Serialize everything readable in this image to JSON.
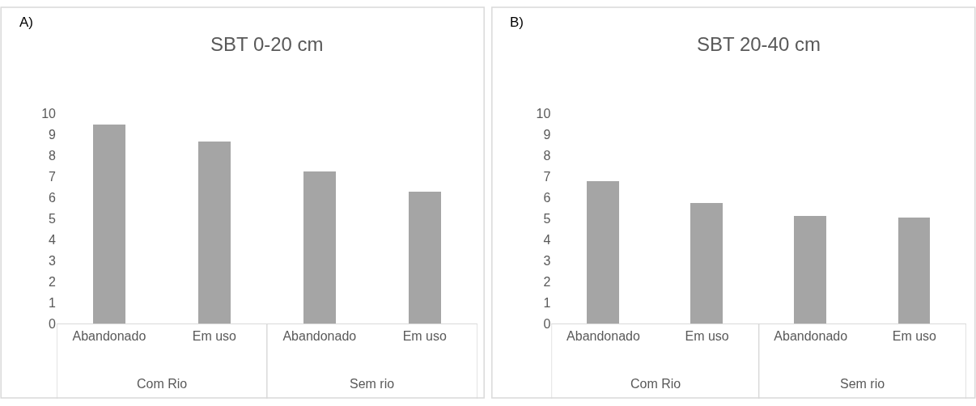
{
  "chart_data": [
    {
      "type": "bar",
      "title": "SBT 0-20 cm",
      "categories": [
        "Abandonado",
        "Em uso",
        "Abandonado",
        "Em uso"
      ],
      "values": [
        9.45,
        8.65,
        7.23,
        6.26
      ],
      "color": "#a5a5a5",
      "ylim": [
        0,
        10
      ],
      "yticks": [
        0,
        1,
        2,
        3,
        4,
        5,
        6,
        7,
        8,
        9,
        10
      ],
      "grid": false,
      "annotations": [
        "A)",
        "Com Rio",
        "Sem rio"
      ]
    },
    {
      "type": "bar",
      "title": "SBT 20-40 cm",
      "categories": [
        "Abandonado",
        "Em uso",
        "Abandonado",
        "Em uso"
      ],
      "values": [
        6.75,
        5.73,
        5.1,
        5.04
      ],
      "color": "#a5a5a5",
      "ylim": [
        0,
        10
      ],
      "yticks": [
        0,
        1,
        2,
        3,
        4,
        5,
        6,
        7,
        8,
        9,
        10
      ],
      "grid": false,
      "annotations": [
        "B)",
        "Com Rio",
        "Sem rio"
      ]
    }
  ]
}
